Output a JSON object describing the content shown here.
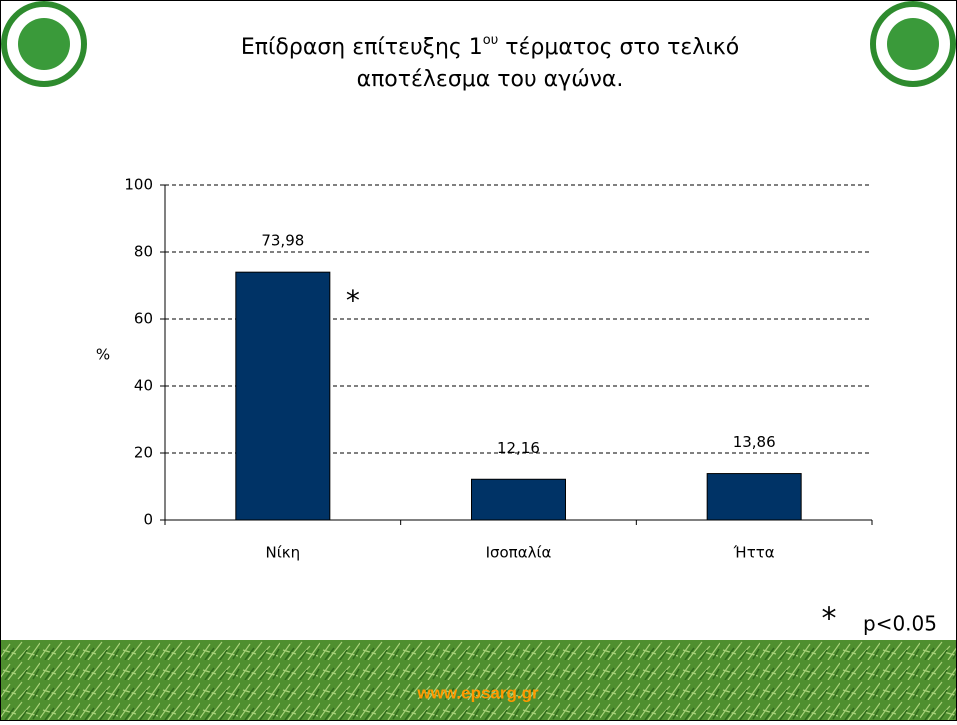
{
  "slide": {
    "title": [
      "Επίδραση επίτευξης 1",
      "ου",
      " τέρματος στο τελικό",
      "αποτέλεσμα του αγώνα."
    ],
    "note_symbol": "*",
    "note_text": "p<0.05",
    "footer": "www.epsarg.gr"
  },
  "chart_data": {
    "type": "bar",
    "categories": [
      "Νίκη",
      "Ισοπαλία",
      "Ήττα"
    ],
    "values": [
      73.98,
      12.16,
      13.86
    ],
    "value_labels": [
      "73,98",
      "12,16",
      "13,86"
    ],
    "color": "#003366",
    "ylabel": "%",
    "ylim": [
      0,
      100
    ],
    "yticks": [
      0,
      20,
      40,
      60,
      80,
      100
    ],
    "grid": true,
    "annotations": [
      "*"
    ]
  }
}
